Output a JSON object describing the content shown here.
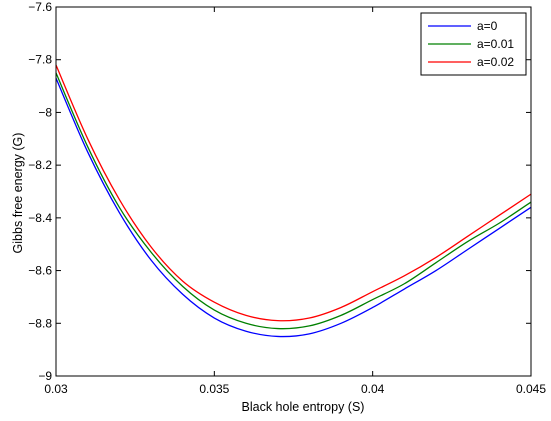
{
  "chart_data": {
    "type": "line",
    "title": "",
    "xlabel": "Black hole entropy (S)",
    "ylabel": "Gibbs free energy (G)",
    "xlim": [
      0.03,
      0.045
    ],
    "ylim": [
      -9,
      -7.6
    ],
    "x_ticks": [
      0.03,
      0.035,
      0.04,
      0.045
    ],
    "x_tick_labels": [
      "0.03",
      "0.035",
      "0.04",
      "0.045"
    ],
    "y_ticks": [
      -9,
      -8.8,
      -8.6,
      -8.4,
      -8.2,
      -8,
      -7.8,
      -7.6
    ],
    "y_tick_labels": [
      "−9",
      "−8.8",
      "−8.6",
      "−8.4",
      "−8.2",
      "−8",
      "−7.8",
      "−7.6"
    ],
    "grid": false,
    "legend_position": "top-right",
    "x": [
      0.03,
      0.031,
      0.032,
      0.033,
      0.034,
      0.035,
      0.036,
      0.037,
      0.038,
      0.039,
      0.04,
      0.041,
      0.042,
      0.043,
      0.044,
      0.045
    ],
    "series": [
      {
        "name": "a=0",
        "color": "#0000ff",
        "values": [
          -7.87,
          -8.15,
          -8.38,
          -8.56,
          -8.69,
          -8.78,
          -8.83,
          -8.85,
          -8.84,
          -8.8,
          -8.74,
          -8.67,
          -8.6,
          -8.52,
          -8.44,
          -8.36
        ]
      },
      {
        "name": "a=0.01",
        "color": "#008000",
        "values": [
          -7.85,
          -8.13,
          -8.36,
          -8.53,
          -8.66,
          -8.75,
          -8.8,
          -8.82,
          -8.81,
          -8.77,
          -8.71,
          -8.65,
          -8.57,
          -8.49,
          -8.42,
          -8.34
        ]
      },
      {
        "name": "a=0.02",
        "color": "#ff0000",
        "values": [
          -7.82,
          -8.1,
          -8.33,
          -8.51,
          -8.64,
          -8.72,
          -8.77,
          -8.79,
          -8.78,
          -8.74,
          -8.68,
          -8.62,
          -8.55,
          -8.47,
          -8.39,
          -8.31
        ]
      }
    ]
  }
}
